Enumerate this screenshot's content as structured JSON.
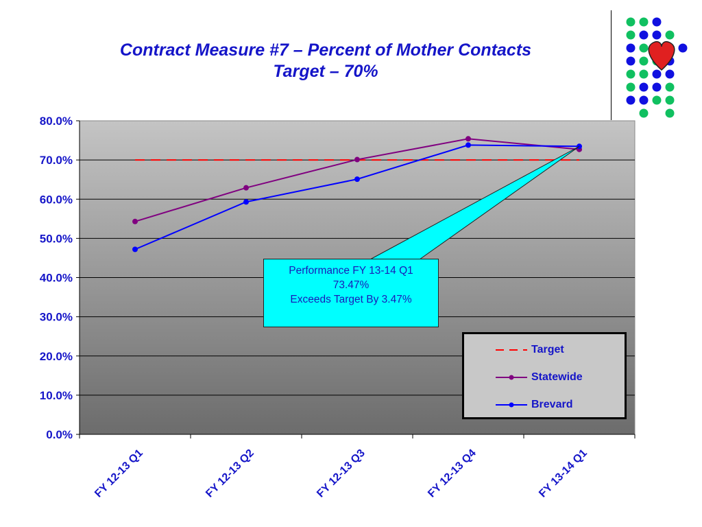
{
  "title": {
    "line1": "Contract Measure #7 – Percent of Mother Contacts",
    "line2": "Target – 70%"
  },
  "callout": {
    "line1": "Performance FY 13-14 Q1",
    "line2": "73.47%",
    "line3": "Exceeds Target By 3.47%"
  },
  "logo": {
    "icon": "heart-dots-logo",
    "colors": {
      "green": "#10c060",
      "blue": "#1010e0",
      "heart": "#e02020"
    }
  },
  "chart_data": {
    "type": "line",
    "categories": [
      "FY 12-13 Q1",
      "FY 12-13 Q2",
      "FY 12-13 Q3",
      "FY 12-13 Q4",
      "FY 13-14 Q1"
    ],
    "ylim": [
      0,
      80
    ],
    "yticks": [
      0,
      10,
      20,
      30,
      40,
      50,
      60,
      70,
      80
    ],
    "ytick_labels": [
      "0.0%",
      "10.0%",
      "20.0%",
      "30.0%",
      "40.0%",
      "50.0%",
      "60.0%",
      "70.0%",
      "80.0%"
    ],
    "grid": true,
    "legend_position": "bottom-right",
    "series": [
      {
        "name": "Target",
        "values": [
          70,
          70,
          70,
          70,
          70
        ],
        "color": "#ff0000",
        "style": "dashed"
      },
      {
        "name": "Statewide",
        "values": [
          54.3,
          62.9,
          70.1,
          75.4,
          72.7
        ],
        "color": "#800080",
        "style": "solid-marker"
      },
      {
        "name": "Brevard",
        "values": [
          47.2,
          59.3,
          65.1,
          73.8,
          73.47
        ],
        "color": "#0000ff",
        "style": "solid-marker"
      }
    ]
  }
}
